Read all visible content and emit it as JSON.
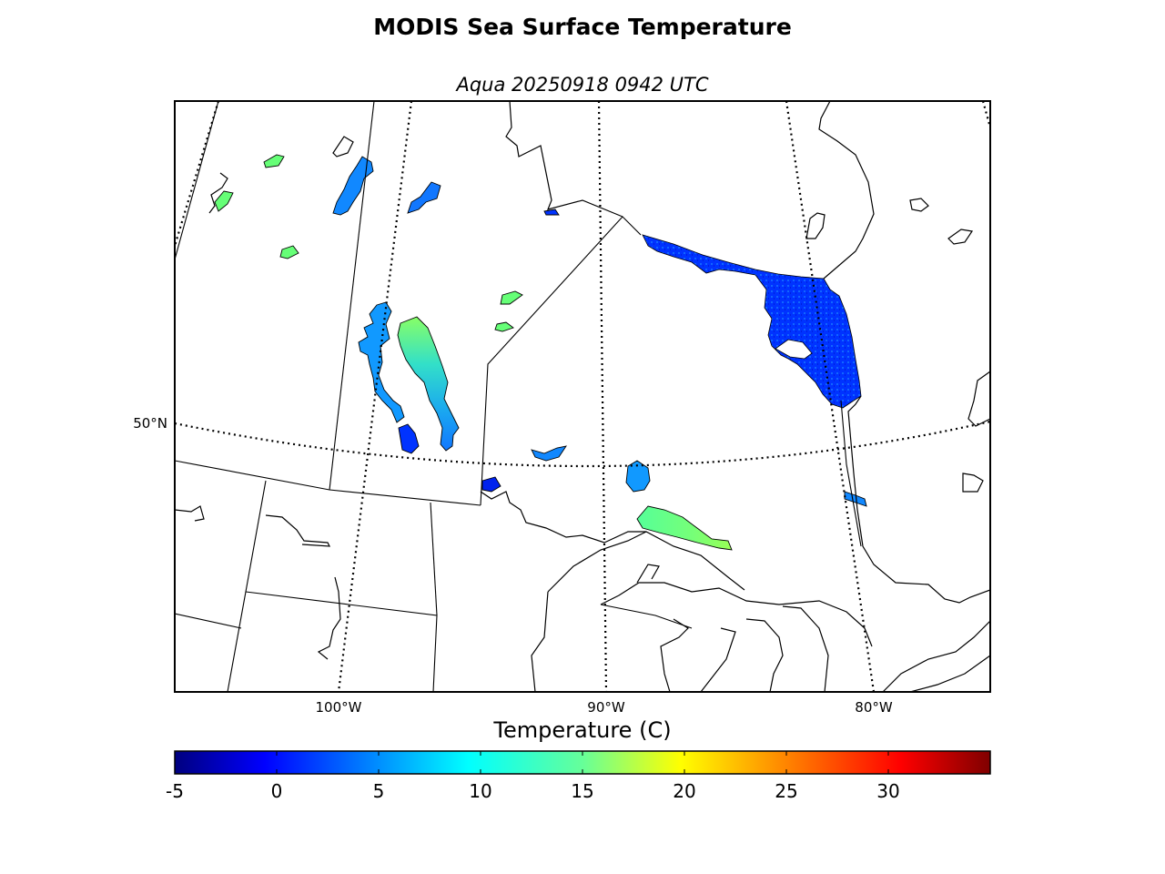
{
  "title": "MODIS Sea Surface Temperature",
  "subtitle": "Aqua 20250918 0942 UTC",
  "map": {
    "lat_labels": [
      "50°N"
    ],
    "lon_labels": [
      "100°W",
      "90°W",
      "80°W"
    ]
  },
  "colorbar": {
    "label": "Temperature (C)",
    "colormap": "jet",
    "range": [
      -5,
      35
    ],
    "ticks": [
      "-5",
      "0",
      "5",
      "10",
      "15",
      "20",
      "25",
      "30"
    ],
    "tick_values": [
      -5,
      0,
      5,
      10,
      15,
      20,
      25,
      30
    ]
  },
  "colors": {
    "cold": "#0000ff",
    "mid": "#00ccff",
    "warm": "#66ff66"
  }
}
